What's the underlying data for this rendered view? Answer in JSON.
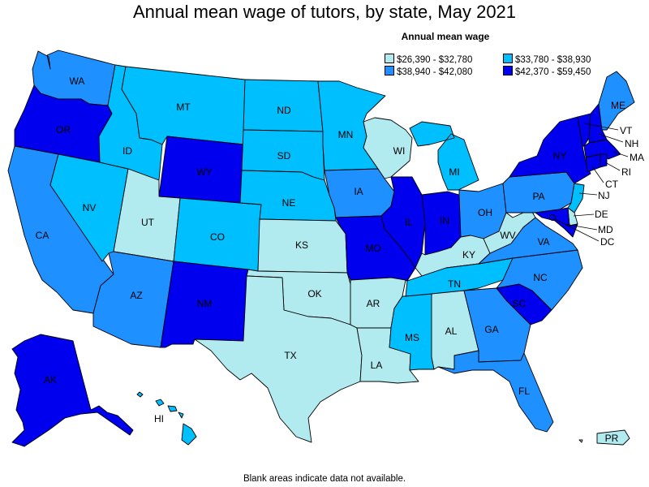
{
  "title": "Annual mean wage of tutors, by state, May 2021",
  "legend": {
    "title": "Annual mean wage",
    "bins": [
      {
        "label": "$26,390 - $32,780",
        "color": "#b2ebef"
      },
      {
        "label": "$33,780 - $38,930",
        "color": "#00bfff"
      },
      {
        "label": "$38,940 - $42,080",
        "color": "#1e90ff"
      },
      {
        "label": "$42,370 - $59,450",
        "color": "#0000ee"
      }
    ]
  },
  "footnote": "Blank areas indicate data not available.",
  "states": {
    "WA": 2,
    "OR": 3,
    "CA": 2,
    "NV": 1,
    "ID": 1,
    "MT": 1,
    "WY": 3,
    "UT": 0,
    "AZ": 2,
    "CO": 1,
    "NM": 3,
    "ND": 1,
    "SD": 1,
    "NE": 1,
    "KS": 0,
    "OK": 0,
    "TX": 0,
    "MN": 1,
    "IA": 2,
    "MO": 3,
    "AR": 0,
    "LA": 0,
    "WI": 0,
    "IL": 3,
    "MI": 1,
    "IN": 3,
    "OH": 2,
    "KY": 0,
    "TN": 1,
    "MS": 1,
    "AL": 0,
    "GA": 2,
    "FL": 2,
    "SC": 3,
    "NC": 2,
    "VA": 2,
    "WV": 0,
    "PA": 2,
    "NY": 3,
    "ME": 2,
    "VT": 3,
    "NH": 3,
    "MA": 3,
    "RI": 3,
    "CT": 3,
    "NJ": 1,
    "DE": 0,
    "MD": 3,
    "DC": 3,
    "AK": 3,
    "HI": 1,
    "PR": 0
  },
  "state_labels": {
    "WA": "WA",
    "OR": "OR",
    "CA": "CA",
    "NV": "NV",
    "ID": "ID",
    "MT": "MT",
    "WY": "WY",
    "UT": "UT",
    "AZ": "AZ",
    "CO": "CO",
    "NM": "NM",
    "ND": "ND",
    "SD": "SD",
    "NE": "NE",
    "KS": "KS",
    "OK": "OK",
    "TX": "TX",
    "MN": "MN",
    "IA": "IA",
    "MO": "MO",
    "AR": "AR",
    "LA": "LA",
    "WI": "WI",
    "IL": "IL",
    "MI": "MI",
    "IN": "IN",
    "OH": "OH",
    "KY": "KY",
    "TN": "TN",
    "MS": "MS",
    "AL": "AL",
    "GA": "GA",
    "FL": "FL",
    "SC": "SC",
    "NC": "NC",
    "VA": "VA",
    "WV": "WV",
    "PA": "PA",
    "NY": "NY",
    "ME": "ME",
    "VT": "VT",
    "NH": "NH",
    "MA": "MA",
    "RI": "RI",
    "CT": "CT",
    "NJ": "NJ",
    "DE": "DE",
    "MD": "MD",
    "DC": "DC",
    "AK": "AK",
    "HI": "HI",
    "PR": "PR"
  }
}
